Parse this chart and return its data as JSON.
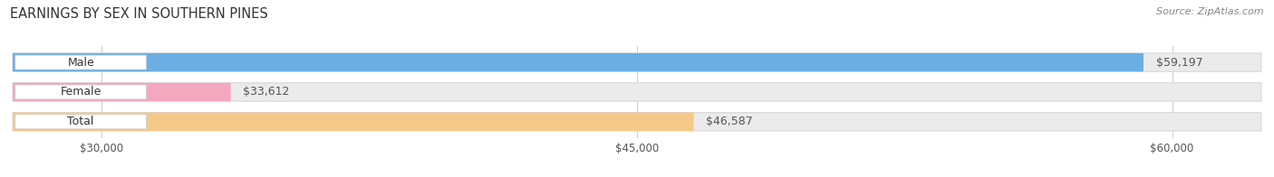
{
  "title": "EARNINGS BY SEX IN SOUTHERN PINES",
  "source_text": "Source: ZipAtlas.com",
  "categories": [
    "Male",
    "Female",
    "Total"
  ],
  "values": [
    59197,
    33612,
    46587
  ],
  "bar_colors": [
    "#6aaee4",
    "#f4a8c0",
    "#f5c98a"
  ],
  "value_labels": [
    "$59,197",
    "$33,612",
    "$46,587"
  ],
  "xmin": 27500,
  "xmax": 62500,
  "xticks": [
    30000,
    45000,
    60000
  ],
  "xtick_labels": [
    "$30,000",
    "$45,000",
    "$60,000"
  ],
  "bg_color": "#ffffff",
  "bar_bg_color": "#ebebeb",
  "bar_bg_edge": "#d8d8d8",
  "title_fontsize": 10.5,
  "tick_fontsize": 8.5,
  "source_fontsize": 8
}
